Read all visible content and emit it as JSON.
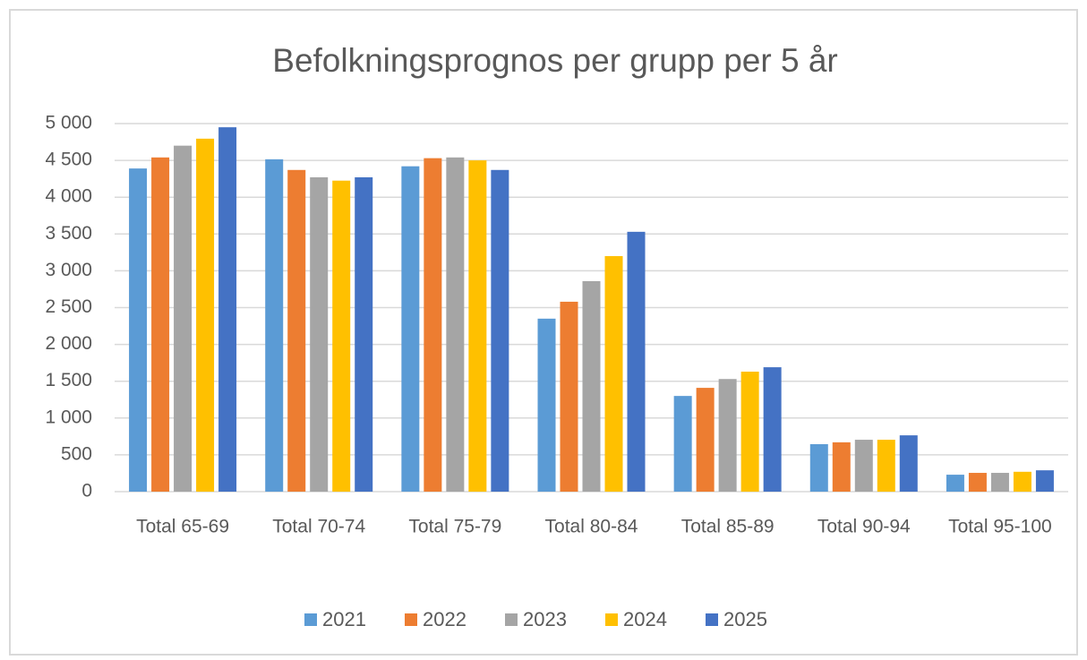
{
  "chart_data": {
    "type": "bar",
    "title": "Befolkningsprognos per grupp per 5 år",
    "categories": [
      "Total 65-69",
      "Total 70-74",
      "Total 75-79",
      "Total 80-84",
      "Total 85-89",
      "Total 90-94",
      "Total 95-100"
    ],
    "series": [
      {
        "name": "2021",
        "color": "#5b9bd5",
        "values": [
          4390,
          4515,
          4420,
          2350,
          1300,
          645,
          230
        ]
      },
      {
        "name": "2022",
        "color": "#ed7d31",
        "values": [
          4540,
          4370,
          4530,
          2580,
          1410,
          670,
          255
        ]
      },
      {
        "name": "2023",
        "color": "#a5a5a5",
        "values": [
          4700,
          4270,
          4540,
          2860,
          1530,
          705,
          255
        ]
      },
      {
        "name": "2024",
        "color": "#ffc000",
        "values": [
          4795,
          4225,
          4500,
          3200,
          1630,
          705,
          270
        ]
      },
      {
        "name": "2025",
        "color": "#4472c4",
        "values": [
          4950,
          4270,
          4370,
          3530,
          1690,
          765,
          290
        ]
      }
    ],
    "ylim": [
      0,
      5000
    ],
    "yticks": [
      0,
      500,
      {
        "value": 1000,
        "label": "1 000"
      },
      {
        "value": 1500,
        "label": "1 500"
      },
      {
        "value": 2000,
        "label": "2 000"
      },
      {
        "value": 2500,
        "label": "2 500"
      },
      {
        "value": 3000,
        "label": "3 000"
      },
      {
        "value": 3500,
        "label": "3 500"
      },
      {
        "value": 4000,
        "label": "4 000"
      },
      {
        "value": 4500,
        "label": "4 500"
      },
      {
        "value": 5000,
        "label": "5 000"
      }
    ],
    "grid": true,
    "legend": "bottom"
  }
}
